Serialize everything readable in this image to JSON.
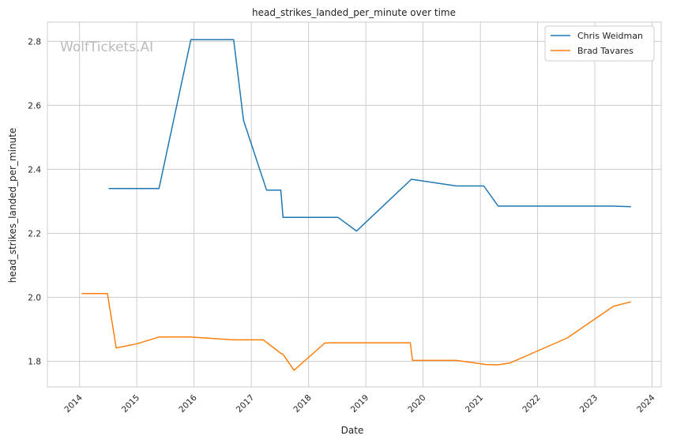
{
  "chart_data": {
    "type": "line",
    "title": "head_strikes_landed_per_minute over time",
    "xlabel": "Date",
    "ylabel": "head_strikes_landed_per_minute",
    "watermark": "WolfTickets.AI",
    "x_ticks": [
      "2014",
      "2015",
      "2016",
      "2017",
      "2018",
      "2019",
      "2020",
      "2021",
      "2022",
      "2023",
      "2024"
    ],
    "y_ticks": [
      "1.8",
      "2.0",
      "2.2",
      "2.4",
      "2.6",
      "2.8"
    ],
    "xlim": [
      "2013-06-10",
      "2024-02-28"
    ],
    "ylim": [
      1.72,
      2.86
    ],
    "grid": true,
    "legend_position": "top-right",
    "series": [
      {
        "name": "Chris Weidman",
        "color": "#1f77b4",
        "points": [
          [
            "2014-07-05",
            2.34
          ],
          [
            "2015-05-23",
            2.34
          ],
          [
            "2015-12-12",
            2.805
          ],
          [
            "2016-09-10",
            2.805
          ],
          [
            "2016-11-12",
            2.553
          ],
          [
            "2017-04-08",
            2.335
          ],
          [
            "2017-07-08",
            2.335
          ],
          [
            "2017-07-22",
            2.25
          ],
          [
            "2018-07-07",
            2.25
          ],
          [
            "2018-11-03",
            2.207
          ],
          [
            "2019-10-19",
            2.369
          ],
          [
            "2020-08-01",
            2.348
          ],
          [
            "2021-01-23",
            2.348
          ],
          [
            "2021-04-24",
            2.285
          ],
          [
            "2023-04-29",
            2.285
          ],
          [
            "2023-08-19",
            2.283
          ]
        ]
      },
      {
        "name": "Brad Tavares",
        "color": "#ff7f0e",
        "points": [
          [
            "2014-01-15",
            2.012
          ],
          [
            "2014-06-28",
            2.012
          ],
          [
            "2014-08-23",
            1.842
          ],
          [
            "2015-01-03",
            1.855
          ],
          [
            "2015-05-23",
            1.876
          ],
          [
            "2015-12-12",
            1.876
          ],
          [
            "2016-09-10",
            1.867
          ],
          [
            "2017-03-18",
            1.867
          ],
          [
            "2017-07-08",
            1.825
          ],
          [
            "2017-07-22",
            1.822
          ],
          [
            "2017-09-30",
            1.772
          ],
          [
            "2018-04-14",
            1.857
          ],
          [
            "2018-05-19",
            1.858
          ],
          [
            "2019-10-12",
            1.858
          ],
          [
            "2019-10-26",
            1.803
          ],
          [
            "2020-08-01",
            1.803
          ],
          [
            "2021-02-06",
            1.79
          ],
          [
            "2021-04-24",
            1.789
          ],
          [
            "2021-07-10",
            1.795
          ],
          [
            "2022-07-09",
            1.873
          ],
          [
            "2023-04-29",
            1.972
          ],
          [
            "2023-08-19",
            1.986
          ]
        ]
      }
    ]
  }
}
